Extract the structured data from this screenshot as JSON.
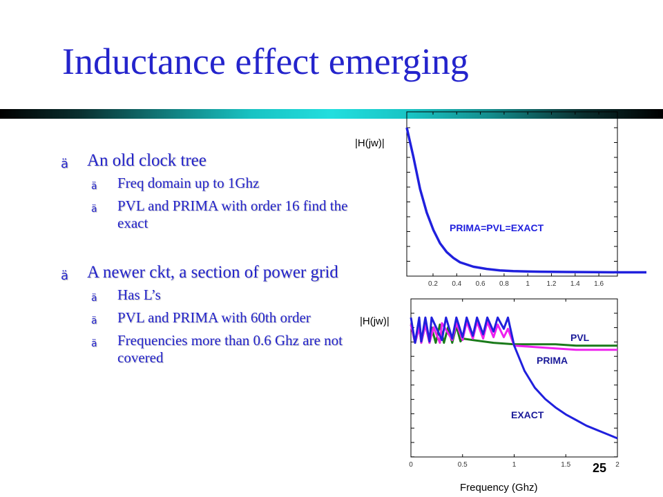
{
  "slide": {
    "title": "Inductance effect emerging",
    "page_number": "25"
  },
  "bullets": [
    {
      "text": "An old clock tree",
      "sub": [
        "Freq domain up to 1Ghz",
        "PVL and PRIMA with order 16 find the exact"
      ]
    },
    {
      "text": "A newer ckt, a section of power grid",
      "sub": [
        "Has L’s",
        "PVL and PRIMA with 60th order",
        "Frequencies more than 0.6 Ghz are not covered"
      ]
    }
  ],
  "chart_data": [
    {
      "type": "line",
      "ylabel": "|H(jw)|",
      "xlabel": "",
      "xlim": [
        0,
        1.8
      ],
      "xticks": [
        "0.2",
        "0.4",
        "0.6",
        "0.8",
        "1",
        "1.2",
        "1.4",
        "1.6"
      ],
      "annotation": "PRIMA=PVL=EXACT",
      "series": [
        {
          "name": "PRIMA=PVL=EXACT",
          "color": "#2020dd",
          "x": [
            0.0,
            0.05,
            0.1,
            0.15,
            0.2,
            0.25,
            0.3,
            0.35,
            0.4,
            0.5,
            0.6,
            0.7,
            0.8,
            1.0,
            1.2,
            1.4,
            1.6,
            1.8
          ],
          "y": [
            1.0,
            0.8,
            0.58,
            0.42,
            0.3,
            0.21,
            0.15,
            0.11,
            0.08,
            0.05,
            0.035,
            0.025,
            0.02,
            0.016,
            0.014,
            0.013,
            0.012,
            0.012
          ]
        }
      ]
    },
    {
      "type": "line",
      "ylabel": "|H(jw)|",
      "xlabel": "Frequency (Ghz)",
      "xlim": [
        0,
        2
      ],
      "xticks": [
        "0",
        "0.5",
        "1",
        "1.5",
        "2"
      ],
      "series": [
        {
          "name": "PVL",
          "color": "#1a7a1a",
          "x": [
            0,
            0.04,
            0.08,
            0.1,
            0.14,
            0.18,
            0.2,
            0.24,
            0.28,
            0.32,
            0.36,
            0.4,
            0.44,
            0.48,
            0.5,
            0.6,
            0.8,
            1.0,
            1.2,
            1.4,
            1.6,
            1.8,
            2.0
          ],
          "y": [
            0.95,
            0.82,
            0.93,
            0.82,
            0.95,
            0.82,
            0.93,
            0.82,
            0.95,
            0.82,
            0.93,
            0.82,
            0.94,
            0.83,
            0.85,
            0.84,
            0.82,
            0.81,
            0.81,
            0.81,
            0.8,
            0.8,
            0.8
          ]
        },
        {
          "name": "PRIMA",
          "color": "#ee22ee",
          "x": [
            0,
            0.04,
            0.08,
            0.1,
            0.14,
            0.18,
            0.22,
            0.28,
            0.3,
            0.4,
            0.44,
            0.5,
            0.54,
            0.6,
            0.64,
            0.7,
            0.74,
            0.8,
            0.84,
            0.9,
            0.94,
            1.0,
            1.2,
            1.4,
            1.6,
            1.8,
            2.0
          ],
          "y": [
            0.95,
            0.82,
            0.93,
            0.82,
            0.95,
            0.82,
            0.93,
            0.82,
            0.96,
            0.84,
            0.96,
            0.84,
            0.97,
            0.85,
            0.97,
            0.85,
            0.97,
            0.86,
            0.95,
            0.86,
            0.92,
            0.8,
            0.79,
            0.78,
            0.77,
            0.77,
            0.77
          ]
        },
        {
          "name": "EXACT",
          "color": "#2020dd",
          "x": [
            0,
            0.04,
            0.08,
            0.1,
            0.14,
            0.18,
            0.2,
            0.3,
            0.34,
            0.4,
            0.44,
            0.5,
            0.54,
            0.6,
            0.64,
            0.7,
            0.74,
            0.8,
            0.84,
            0.9,
            0.94,
            1.0,
            1.1,
            1.2,
            1.3,
            1.4,
            1.5,
            1.6,
            1.7,
            1.8,
            1.9,
            2.0
          ],
          "y": [
            1.0,
            0.82,
            1.0,
            0.83,
            1.0,
            0.83,
            1.0,
            0.84,
            1.0,
            0.85,
            1.0,
            0.86,
            1.0,
            0.87,
            1.0,
            0.88,
            1.0,
            0.9,
            1.0,
            0.92,
            1.0,
            0.8,
            0.62,
            0.5,
            0.42,
            0.36,
            0.31,
            0.27,
            0.23,
            0.2,
            0.17,
            0.14
          ]
        }
      ]
    }
  ]
}
